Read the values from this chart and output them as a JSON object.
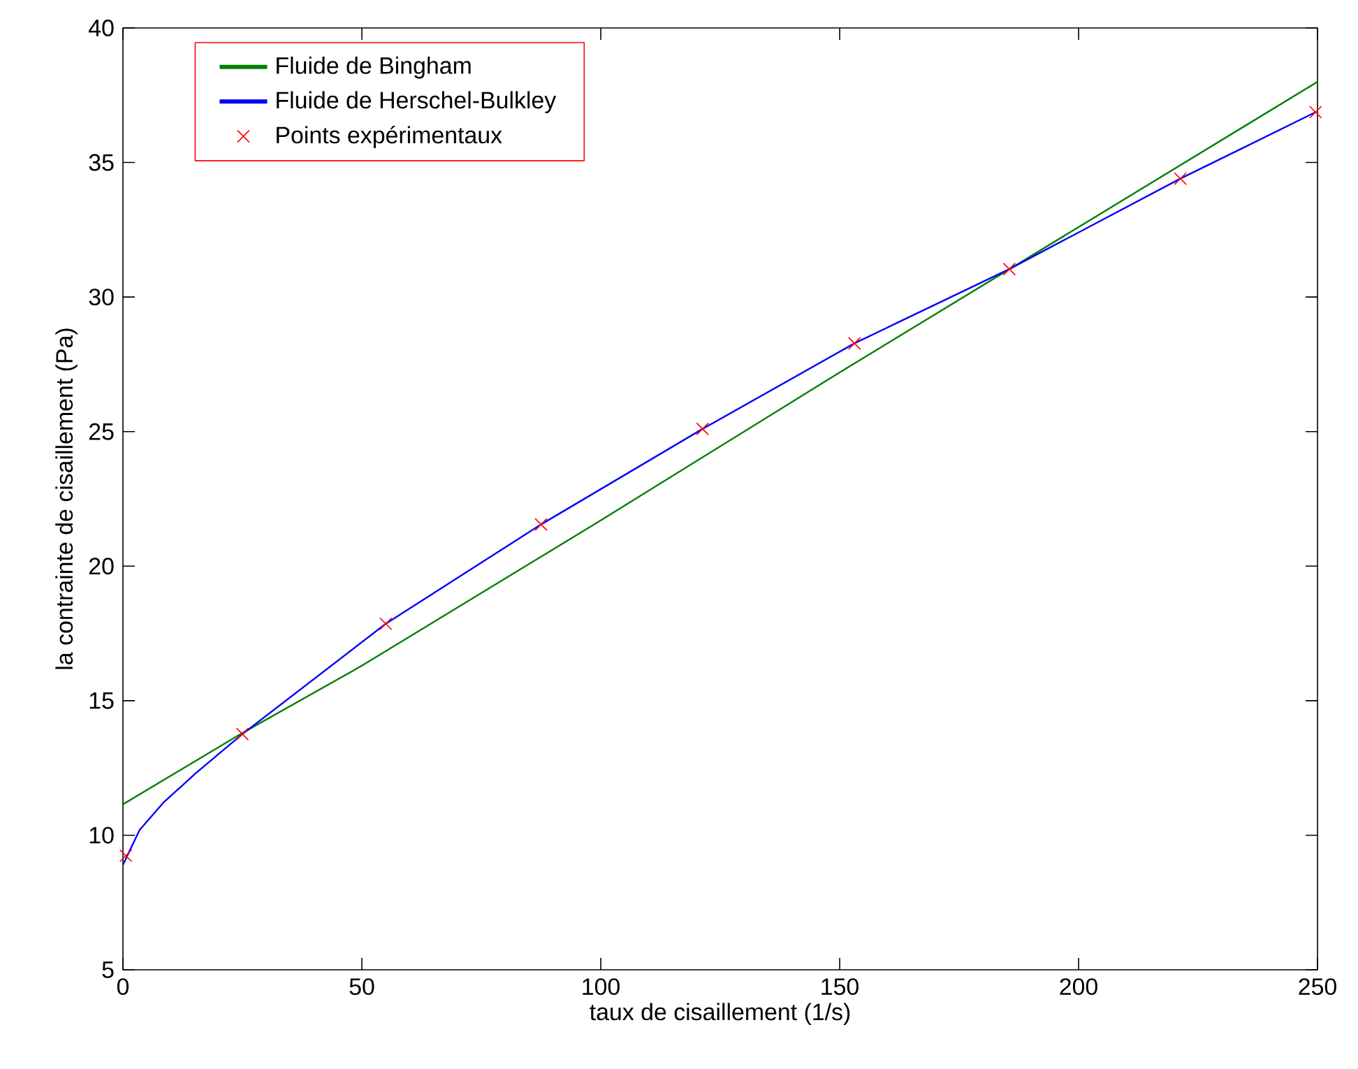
{
  "chart_data": {
    "type": "line",
    "xlabel": "taux de cisaillement (1/s)",
    "ylabel": "la contrainte de cisaillement (Pa)",
    "xlim": [
      0,
      250
    ],
    "ylim": [
      5,
      40
    ],
    "xticks": [
      0,
      50,
      100,
      150,
      200,
      250
    ],
    "yticks": [
      5,
      10,
      15,
      20,
      25,
      30,
      35,
      40
    ],
    "grid": false,
    "legend": "top left",
    "series": [
      {
        "name": "Fluide de Bingham",
        "color": "#008000",
        "line_style": "solid",
        "x": [
          0,
          25,
          50,
          100,
          150,
          200,
          250
        ],
        "values": [
          11.15,
          13.8,
          16.3,
          21.7,
          27.2,
          32.6,
          38.0
        ]
      },
      {
        "name": "Fluide de Herschel-Bulkley",
        "color": "#0000ff",
        "line_style": "solid",
        "x": [
          0,
          3.5,
          8.4,
          15.2,
          25,
          55,
          87.5,
          121.3,
          153.1,
          185.5,
          221.3,
          249.6
        ],
        "values": [
          8.9,
          10.2,
          11.2,
          12.3,
          13.76,
          17.86,
          21.55,
          25.1,
          28.28,
          31.04,
          34.4,
          36.87
        ]
      },
      {
        "name": "Points expérimentaux",
        "type": "scatter",
        "marker": "cross",
        "color": "#ff0000",
        "x": [
          0.6,
          25.0,
          55.0,
          87.5,
          121.3,
          153.1,
          185.5,
          221.3,
          249.6
        ],
        "values": [
          9.24,
          13.76,
          17.86,
          21.55,
          25.1,
          28.28,
          31.04,
          34.4,
          36.87
        ]
      }
    ]
  }
}
